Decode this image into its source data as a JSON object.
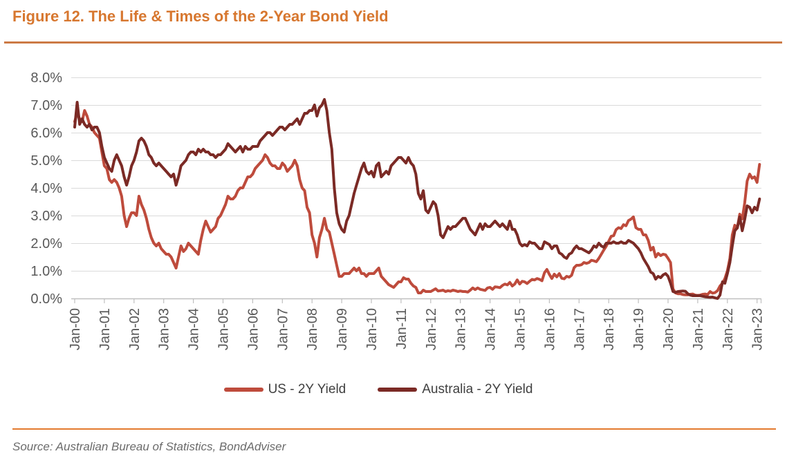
{
  "page": {
    "title": "Figure 12. The Life & Times of the 2-Year Bond Yield",
    "source": "Source: Australian Bureau of Statistics, BondAdviser"
  },
  "colors": {
    "title_orange": "#D7772F",
    "rule_top": "#CC7A45",
    "rule_bottom": "#E37A2E",
    "gridline": "#DADADA",
    "axis": "#BFBFBF",
    "tick_label": "#595959",
    "legend_text": "#404040",
    "source_text": "#6B6B6B",
    "us_line": "#BE4B3C",
    "aus_line": "#7B2A25"
  },
  "chart_data": {
    "type": "line",
    "title": "Figure 12. The Life & Times of the 2-Year Bond Yield",
    "xlabel": "",
    "ylabel": "",
    "ylim": [
      0,
      8
    ],
    "grid": "horizontal",
    "legend_position": "bottom",
    "frequency": "monthly",
    "x_start": "Jan-2000",
    "x_end": "Feb-2023",
    "y_ticks": [
      {
        "value": 0,
        "label": "0.0%"
      },
      {
        "value": 1,
        "label": "1.0%"
      },
      {
        "value": 2,
        "label": "2.0%"
      },
      {
        "value": 3,
        "label": "3.0%"
      },
      {
        "value": 4,
        "label": "4.0%"
      },
      {
        "value": 5,
        "label": "5.0%"
      },
      {
        "value": 6,
        "label": "6.0%"
      },
      {
        "value": 7,
        "label": "7.0%"
      },
      {
        "value": 8,
        "label": "8.0%"
      }
    ],
    "x_ticks": [
      "Jan-00",
      "Jan-01",
      "Jan-02",
      "Jan-03",
      "Jan-04",
      "Jan-05",
      "Jan-06",
      "Jan-07",
      "Jan-08",
      "Jan-09",
      "Jan-10",
      "Jan-11",
      "Jan-12",
      "Jan-13",
      "Jan-14",
      "Jan-15",
      "Jan-16",
      "Jan-17",
      "Jan-18",
      "Jan-19",
      "Jan-20",
      "Jan-21",
      "Jan-22",
      "Jan-23"
    ],
    "series": [
      {
        "name": "US - 2Y Yield",
        "color": "#BE4B3C",
        "values": [
          6.4,
          6.7,
          6.5,
          6.4,
          6.8,
          6.6,
          6.3,
          6.2,
          6.0,
          5.9,
          5.8,
          5.3,
          4.8,
          4.7,
          4.3,
          4.2,
          4.3,
          4.2,
          4.0,
          3.7,
          3.0,
          2.6,
          2.9,
          3.1,
          3.1,
          3.0,
          3.7,
          3.4,
          3.2,
          2.9,
          2.5,
          2.2,
          2.0,
          1.9,
          2.0,
          1.8,
          1.7,
          1.6,
          1.6,
          1.5,
          1.3,
          1.1,
          1.5,
          1.9,
          1.7,
          1.8,
          2.0,
          1.9,
          1.8,
          1.7,
          1.6,
          2.1,
          2.5,
          2.8,
          2.6,
          2.4,
          2.5,
          2.6,
          2.9,
          3.0,
          3.2,
          3.4,
          3.7,
          3.6,
          3.6,
          3.7,
          3.9,
          4.0,
          4.0,
          4.2,
          4.4,
          4.4,
          4.5,
          4.7,
          4.8,
          4.9,
          5.0,
          5.2,
          5.1,
          4.9,
          4.8,
          4.8,
          4.7,
          4.7,
          4.9,
          4.8,
          4.6,
          4.7,
          4.8,
          5.0,
          4.8,
          4.3,
          4.0,
          3.9,
          3.3,
          3.1,
          2.3,
          2.0,
          1.5,
          2.2,
          2.5,
          2.9,
          2.5,
          2.4,
          2.0,
          1.6,
          1.2,
          0.8,
          0.8,
          0.9,
          0.9,
          0.9,
          1.0,
          1.1,
          1.0,
          1.1,
          0.9,
          0.9,
          0.8,
          0.9,
          0.9,
          0.9,
          1.0,
          1.1,
          0.8,
          0.7,
          0.6,
          0.5,
          0.45,
          0.4,
          0.5,
          0.6,
          0.6,
          0.75,
          0.7,
          0.7,
          0.55,
          0.45,
          0.4,
          0.2,
          0.2,
          0.3,
          0.25,
          0.25,
          0.25,
          0.3,
          0.35,
          0.27,
          0.28,
          0.3,
          0.25,
          0.28,
          0.26,
          0.3,
          0.28,
          0.25,
          0.27,
          0.25,
          0.25,
          0.23,
          0.3,
          0.38,
          0.32,
          0.38,
          0.33,
          0.31,
          0.29,
          0.38,
          0.4,
          0.33,
          0.42,
          0.41,
          0.39,
          0.47,
          0.52,
          0.49,
          0.58,
          0.45,
          0.52,
          0.67,
          0.52,
          0.62,
          0.6,
          0.54,
          0.62,
          0.69,
          0.67,
          0.72,
          0.69,
          0.64,
          0.93,
          1.05,
          0.87,
          0.72,
          0.88,
          0.78,
          0.9,
          0.73,
          0.71,
          0.8,
          0.77,
          0.84,
          1.11,
          1.2,
          1.2,
          1.22,
          1.3,
          1.27,
          1.3,
          1.38,
          1.36,
          1.33,
          1.45,
          1.6,
          1.75,
          1.89,
          2.07,
          2.25,
          2.27,
          2.49,
          2.56,
          2.53,
          2.67,
          2.63,
          2.82,
          2.87,
          2.95,
          2.56,
          2.5,
          2.5,
          2.3,
          2.3,
          2.1,
          1.75,
          1.85,
          1.5,
          1.63,
          1.55,
          1.6,
          1.58,
          1.45,
          1.3,
          0.35,
          0.2,
          0.17,
          0.17,
          0.14,
          0.13,
          0.13,
          0.15,
          0.16,
          0.12,
          0.11,
          0.12,
          0.15,
          0.16,
          0.14,
          0.25,
          0.19,
          0.21,
          0.28,
          0.45,
          0.55,
          0.72,
          1.0,
          1.45,
          2.3,
          2.65,
          2.55,
          3.05,
          2.88,
          3.45,
          4.25,
          4.5,
          4.35,
          4.4,
          4.2,
          4.85
        ]
      },
      {
        "name": "Australia - 2Y Yield",
        "color": "#7B2A25",
        "values": [
          6.2,
          7.1,
          6.3,
          6.5,
          6.3,
          6.2,
          6.3,
          6.1,
          6.2,
          6.2,
          6.0,
          5.5,
          5.1,
          4.9,
          4.7,
          4.6,
          5.0,
          5.2,
          5.0,
          4.8,
          4.4,
          4.1,
          4.4,
          4.8,
          5.0,
          5.3,
          5.7,
          5.8,
          5.7,
          5.5,
          5.2,
          5.1,
          4.9,
          4.8,
          4.9,
          4.8,
          4.7,
          4.6,
          4.5,
          4.4,
          4.5,
          4.1,
          4.4,
          4.8,
          4.9,
          5.0,
          5.2,
          5.3,
          5.3,
          5.2,
          5.4,
          5.3,
          5.4,
          5.3,
          5.3,
          5.2,
          5.2,
          5.1,
          5.2,
          5.2,
          5.3,
          5.4,
          5.6,
          5.5,
          5.4,
          5.3,
          5.4,
          5.5,
          5.3,
          5.5,
          5.4,
          5.4,
          5.5,
          5.5,
          5.5,
          5.7,
          5.8,
          5.9,
          6.0,
          6.0,
          5.9,
          6.0,
          6.1,
          6.2,
          6.2,
          6.1,
          6.2,
          6.3,
          6.3,
          6.4,
          6.5,
          6.3,
          6.5,
          6.7,
          6.7,
          6.8,
          6.8,
          7.0,
          6.6,
          6.9,
          7.0,
          7.2,
          6.8,
          6.0,
          5.4,
          4.0,
          3.1,
          2.7,
          2.5,
          2.4,
          2.8,
          3.0,
          3.4,
          3.8,
          4.1,
          4.4,
          4.7,
          4.9,
          4.6,
          4.5,
          4.6,
          4.4,
          4.8,
          4.9,
          4.4,
          4.5,
          4.6,
          4.5,
          4.8,
          4.9,
          5.0,
          5.1,
          5.1,
          5.0,
          4.9,
          5.1,
          4.9,
          4.8,
          4.5,
          3.8,
          3.6,
          3.9,
          3.2,
          3.1,
          3.3,
          3.5,
          3.4,
          3.0,
          2.3,
          2.2,
          2.4,
          2.6,
          2.5,
          2.6,
          2.6,
          2.7,
          2.8,
          2.9,
          2.9,
          2.7,
          2.5,
          2.4,
          2.3,
          2.5,
          2.7,
          2.5,
          2.7,
          2.6,
          2.6,
          2.7,
          2.8,
          2.7,
          2.6,
          2.7,
          2.6,
          2.5,
          2.8,
          2.5,
          2.5,
          2.3,
          2.0,
          1.9,
          1.95,
          1.9,
          2.05,
          2.0,
          2.0,
          1.9,
          1.8,
          1.8,
          2.05,
          2.0,
          1.95,
          1.8,
          1.9,
          1.9,
          1.65,
          1.6,
          1.5,
          1.45,
          1.6,
          1.65,
          1.8,
          1.9,
          1.8,
          1.8,
          1.75,
          1.7,
          1.65,
          1.75,
          1.9,
          1.85,
          2.0,
          1.9,
          1.85,
          2.0,
          2.0,
          2.0,
          2.05,
          2.0,
          2.0,
          2.05,
          2.0,
          2.0,
          2.1,
          2.05,
          2.0,
          1.9,
          1.8,
          1.65,
          1.45,
          1.3,
          1.15,
          0.95,
          0.9,
          0.7,
          0.8,
          0.75,
          0.85,
          0.9,
          0.8,
          0.55,
          0.25,
          0.22,
          0.25,
          0.26,
          0.27,
          0.26,
          0.17,
          0.12,
          0.1,
          0.1,
          0.1,
          0.1,
          0.08,
          0.06,
          0.05,
          0.04,
          0.05,
          0.02,
          0.0,
          0.12,
          0.6,
          0.55,
          0.9,
          1.3,
          1.9,
          2.45,
          2.55,
          2.95,
          2.45,
          2.85,
          3.35,
          3.3,
          3.1,
          3.3,
          3.2,
          3.6
        ]
      }
    ]
  }
}
